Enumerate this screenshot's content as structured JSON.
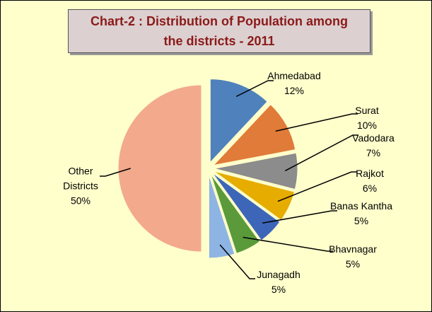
{
  "chart_data": {
    "type": "pie",
    "title": "Chart-2 : Distribution of Population among the districts  - 2011",
    "categories": [
      "Ahmedabad",
      "Surat",
      "Vadodara",
      "Rajkot",
      "Banas Kantha",
      "Bhavnagar",
      "Junagadh",
      "Other Districts"
    ],
    "values": [
      12,
      10,
      7,
      6,
      5,
      5,
      5,
      50
    ],
    "value_labels": [
      "12%",
      "10%",
      "7%",
      "6%",
      "5%",
      "5%",
      "5%",
      "50%"
    ],
    "colors": [
      "#4f81bd",
      "#e07b39",
      "#8c8c8c",
      "#e6ac00",
      "#3d66b8",
      "#5b9a3a",
      "#8eb4e3",
      "#f3a98c"
    ]
  }
}
